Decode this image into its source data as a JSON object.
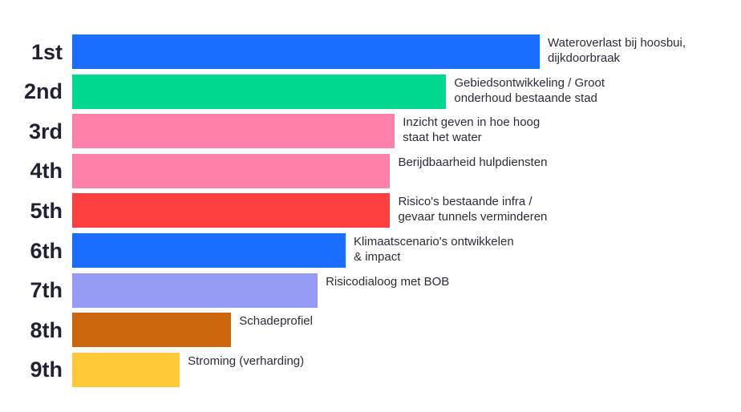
{
  "chart_data": {
    "type": "bar",
    "orientation": "horizontal",
    "title": "",
    "xlabel": "",
    "ylabel": "",
    "grid": false,
    "legend": "none",
    "xlim": [
      0,
      100
    ],
    "items": [
      {
        "rank": "1st",
        "label": "Wateroverlast bij hoosbui,\n dijkdoorbraak",
        "value": 100,
        "color": "#1a6dff"
      },
      {
        "rank": "2nd",
        "label": "Gebiedsontwikkeling / Groot\nonderhoud bestaande stad",
        "value": 80,
        "color": "#00d890"
      },
      {
        "rank": "3rd",
        "label": "Inzicht geven in hoe hoog\nstaat het water",
        "value": 69,
        "color": "#ff80a8"
      },
      {
        "rank": "4th",
        "label": "Berijdbaarheid hulpdiensten",
        "value": 68,
        "color": "#ff80a8"
      },
      {
        "rank": "5th",
        "label": "Risico's bestaande infra /\n gevaar tunnels verminderen",
        "value": 68,
        "color": "#ff4040"
      },
      {
        "rank": "6th",
        "label": "Klimaatscenario's ontwikkelen\n& impact",
        "value": 58.5,
        "color": "#1a6dff"
      },
      {
        "rank": "7th",
        "label": "Risicodialoog met BOB",
        "value": 52.5,
        "color": "#979bf5"
      },
      {
        "rank": "8th",
        "label": "Schadeprofiel",
        "value": 34,
        "color": "#cc660c"
      },
      {
        "rank": "9th",
        "label": "Stroming (verharding)",
        "value": 23,
        "color": "#ffc837"
      }
    ]
  }
}
